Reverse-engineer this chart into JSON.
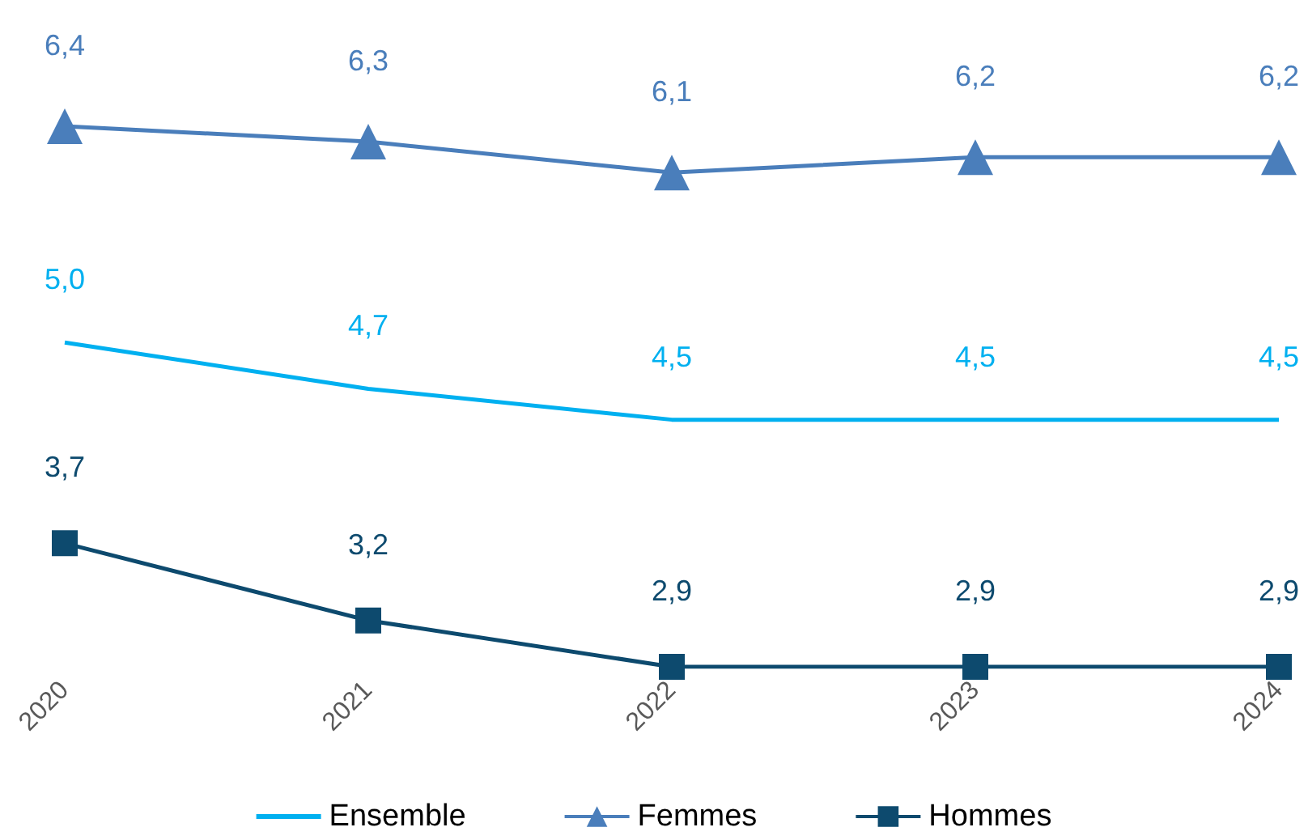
{
  "chart_data": {
    "type": "line",
    "categories": [
      "2020",
      "2021",
      "2022",
      "2023",
      "2024"
    ],
    "series": [
      {
        "name": "Ensemble",
        "color": "#00b0f0",
        "marker": "none",
        "values": [
          5.0,
          4.7,
          4.5,
          4.5,
          4.5
        ],
        "value_labels": [
          "5,0",
          "4,7",
          "4,5",
          "4,5",
          "4,5"
        ]
      },
      {
        "name": "Femmes",
        "color": "#4a7ebb",
        "marker": "triangle",
        "values": [
          6.4,
          6.3,
          6.1,
          6.2,
          6.2
        ],
        "value_labels": [
          "6,4",
          "6,3",
          "6,1",
          "6,2",
          "6,2"
        ]
      },
      {
        "name": "Hommes",
        "color": "#0d4a6e",
        "marker": "square",
        "values": [
          3.7,
          3.2,
          2.9,
          2.9,
          2.9
        ],
        "value_labels": [
          "3,7",
          "3,2",
          "2,9",
          "2,9",
          "2,9"
        ]
      }
    ],
    "tick_labels": "x",
    "legend": "bottom",
    "grid": false
  }
}
